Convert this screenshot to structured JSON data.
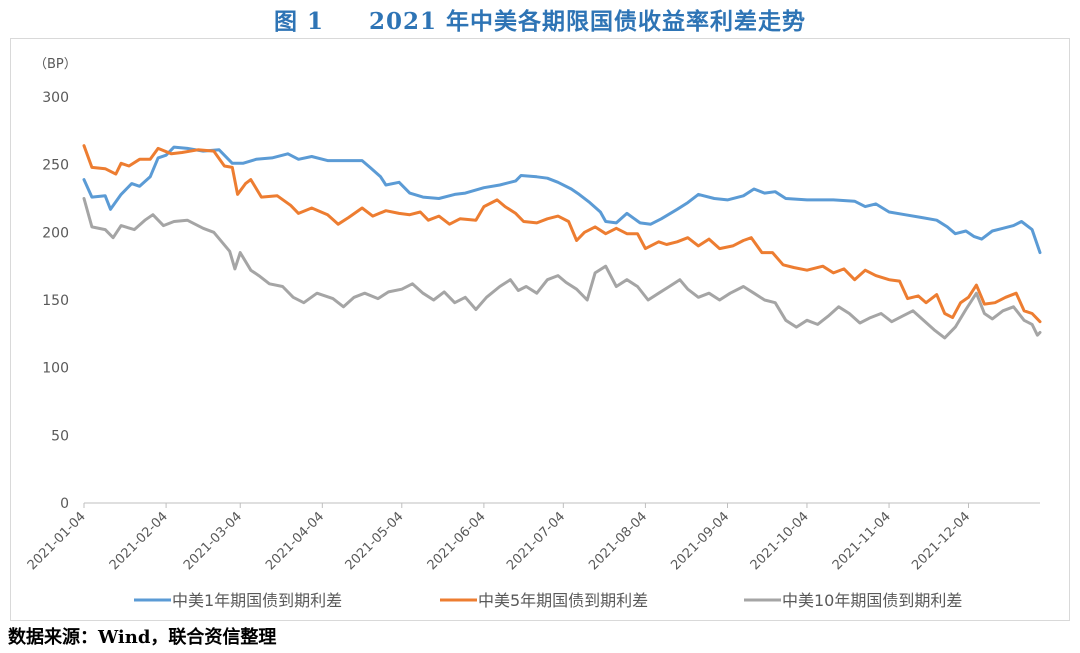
{
  "figure_title": "图 1     2021 年中美各期限国债收益率利差走势",
  "source_note": "数据来源：Wind，联合资信整理",
  "colors": {
    "series_1y": "#5B9BD5",
    "series_5y": "#ED7D31",
    "series_10y": "#A5A5A5",
    "axis": "#bfbfbf",
    "text": "#595959",
    "title": "#2E74B5"
  },
  "chart_data": {
    "type": "line",
    "title": "2021 年中美各期限国债收益率利差走势",
    "xlabel": "",
    "ylabel": "（BP）",
    "ylim": [
      0,
      300
    ],
    "y_ticks": [
      0,
      50,
      100,
      150,
      200,
      250,
      300
    ],
    "x_range": [
      "2021-01-04",
      "2021-12-31"
    ],
    "x_tick_labels": [
      "2021-01-04",
      "2021-02-04",
      "2021-03-04",
      "2021-04-04",
      "2021-05-04",
      "2021-06-04",
      "2021-07-04",
      "2021-08-04",
      "2021-09-04",
      "2021-10-04",
      "2021-11-04",
      "2021-12-04"
    ],
    "grid": false,
    "legend_position": "bottom",
    "series": [
      {
        "name": "中美1年期国债到期利差",
        "points": [
          [
            "2021-01-04",
            239
          ],
          [
            "2021-01-07",
            226
          ],
          [
            "2021-01-12",
            227
          ],
          [
            "2021-01-14",
            217
          ],
          [
            "2021-01-18",
            228
          ],
          [
            "2021-01-22",
            236
          ],
          [
            "2021-01-25",
            234
          ],
          [
            "2021-01-29",
            241
          ],
          [
            "2021-02-01",
            255
          ],
          [
            "2021-02-04",
            257
          ],
          [
            "2021-02-07",
            263
          ],
          [
            "2021-02-12",
            262
          ],
          [
            "2021-02-18",
            260
          ],
          [
            "2021-02-24",
            261
          ],
          [
            "2021-03-01",
            251
          ],
          [
            "2021-03-05",
            251
          ],
          [
            "2021-03-10",
            254
          ],
          [
            "2021-03-16",
            255
          ],
          [
            "2021-03-22",
            258
          ],
          [
            "2021-03-26",
            254
          ],
          [
            "2021-03-31",
            256
          ],
          [
            "2021-04-06",
            253
          ],
          [
            "2021-04-12",
            253
          ],
          [
            "2021-04-19",
            253
          ],
          [
            "2021-04-22",
            248
          ],
          [
            "2021-04-26",
            241
          ],
          [
            "2021-04-28",
            235
          ],
          [
            "2021-05-03",
            237
          ],
          [
            "2021-05-07",
            229
          ],
          [
            "2021-05-12",
            226
          ],
          [
            "2021-05-18",
            225
          ],
          [
            "2021-05-24",
            228
          ],
          [
            "2021-05-28",
            229
          ],
          [
            "2021-06-04",
            233
          ],
          [
            "2021-06-10",
            235
          ],
          [
            "2021-06-16",
            238
          ],
          [
            "2021-06-18",
            242
          ],
          [
            "2021-06-24",
            241
          ],
          [
            "2021-06-28",
            240
          ],
          [
            "2021-07-02",
            237
          ],
          [
            "2021-07-07",
            232
          ],
          [
            "2021-07-10",
            228
          ],
          [
            "2021-07-14",
            222
          ],
          [
            "2021-07-18",
            215
          ],
          [
            "2021-07-20",
            208
          ],
          [
            "2021-07-24",
            207
          ],
          [
            "2021-07-28",
            214
          ],
          [
            "2021-08-02",
            207
          ],
          [
            "2021-08-06",
            206
          ],
          [
            "2021-08-10",
            210
          ],
          [
            "2021-08-16",
            217
          ],
          [
            "2021-08-20",
            222
          ],
          [
            "2021-08-24",
            228
          ],
          [
            "2021-08-30",
            225
          ],
          [
            "2021-09-04",
            224
          ],
          [
            "2021-09-10",
            227
          ],
          [
            "2021-09-14",
            232
          ],
          [
            "2021-09-18",
            229
          ],
          [
            "2021-09-22",
            230
          ],
          [
            "2021-09-26",
            225
          ],
          [
            "2021-10-04",
            224
          ],
          [
            "2021-10-14",
            224
          ],
          [
            "2021-10-22",
            223
          ],
          [
            "2021-10-26",
            219
          ],
          [
            "2021-10-30",
            221
          ],
          [
            "2021-11-04",
            215
          ],
          [
            "2021-11-10",
            213
          ],
          [
            "2021-11-16",
            211
          ],
          [
            "2021-11-22",
            209
          ],
          [
            "2021-11-26",
            204
          ],
          [
            "2021-11-29",
            199
          ],
          [
            "2021-12-03",
            201
          ],
          [
            "2021-12-06",
            197
          ],
          [
            "2021-12-09",
            195
          ],
          [
            "2021-12-13",
            201
          ],
          [
            "2021-12-17",
            203
          ],
          [
            "2021-12-21",
            205
          ],
          [
            "2021-12-24",
            208
          ],
          [
            "2021-12-28",
            202
          ],
          [
            "2021-12-31",
            185
          ]
        ]
      },
      {
        "name": "中美5年期国债到期利差",
        "points": [
          [
            "2021-01-04",
            264
          ],
          [
            "2021-01-07",
            248
          ],
          [
            "2021-01-12",
            247
          ],
          [
            "2021-01-16",
            243
          ],
          [
            "2021-01-18",
            251
          ],
          [
            "2021-01-21",
            249
          ],
          [
            "2021-01-25",
            254
          ],
          [
            "2021-01-29",
            254
          ],
          [
            "2021-02-01",
            262
          ],
          [
            "2021-02-06",
            258
          ],
          [
            "2021-02-10",
            259
          ],
          [
            "2021-02-16",
            261
          ],
          [
            "2021-02-22",
            260
          ],
          [
            "2021-02-26",
            249
          ],
          [
            "2021-03-01",
            248
          ],
          [
            "2021-03-03",
            228
          ],
          [
            "2021-03-06",
            236
          ],
          [
            "2021-03-08",
            239
          ],
          [
            "2021-03-12",
            226
          ],
          [
            "2021-03-18",
            227
          ],
          [
            "2021-03-23",
            220
          ],
          [
            "2021-03-26",
            214
          ],
          [
            "2021-03-31",
            218
          ],
          [
            "2021-04-06",
            213
          ],
          [
            "2021-04-10",
            206
          ],
          [
            "2021-04-14",
            211
          ],
          [
            "2021-04-19",
            218
          ],
          [
            "2021-04-23",
            212
          ],
          [
            "2021-04-28",
            216
          ],
          [
            "2021-05-03",
            214
          ],
          [
            "2021-05-07",
            213
          ],
          [
            "2021-05-11",
            215
          ],
          [
            "2021-05-14",
            209
          ],
          [
            "2021-05-18",
            212
          ],
          [
            "2021-05-22",
            206
          ],
          [
            "2021-05-26",
            210
          ],
          [
            "2021-06-01",
            209
          ],
          [
            "2021-06-04",
            219
          ],
          [
            "2021-06-09",
            224
          ],
          [
            "2021-06-12",
            219
          ],
          [
            "2021-06-16",
            214
          ],
          [
            "2021-06-19",
            208
          ],
          [
            "2021-06-24",
            207
          ],
          [
            "2021-06-28",
            210
          ],
          [
            "2021-07-02",
            212
          ],
          [
            "2021-07-06",
            208
          ],
          [
            "2021-07-09",
            194
          ],
          [
            "2021-07-12",
            200
          ],
          [
            "2021-07-16",
            204
          ],
          [
            "2021-07-20",
            199
          ],
          [
            "2021-07-24",
            203
          ],
          [
            "2021-07-28",
            199
          ],
          [
            "2021-08-01",
            199
          ],
          [
            "2021-08-04",
            188
          ],
          [
            "2021-08-09",
            193
          ],
          [
            "2021-08-12",
            191
          ],
          [
            "2021-08-16",
            193
          ],
          [
            "2021-08-20",
            196
          ],
          [
            "2021-08-24",
            190
          ],
          [
            "2021-08-28",
            195
          ],
          [
            "2021-09-01",
            188
          ],
          [
            "2021-09-06",
            190
          ],
          [
            "2021-09-10",
            194
          ],
          [
            "2021-09-13",
            196
          ],
          [
            "2021-09-17",
            185
          ],
          [
            "2021-09-21",
            185
          ],
          [
            "2021-09-25",
            176
          ],
          [
            "2021-09-29",
            174
          ],
          [
            "2021-10-04",
            172
          ],
          [
            "2021-10-10",
            175
          ],
          [
            "2021-10-14",
            170
          ],
          [
            "2021-10-18",
            173
          ],
          [
            "2021-10-22",
            165
          ],
          [
            "2021-10-26",
            172
          ],
          [
            "2021-10-30",
            168
          ],
          [
            "2021-11-04",
            165
          ],
          [
            "2021-11-08",
            164
          ],
          [
            "2021-11-11",
            151
          ],
          [
            "2021-11-15",
            153
          ],
          [
            "2021-11-18",
            148
          ],
          [
            "2021-11-22",
            154
          ],
          [
            "2021-11-25",
            140
          ],
          [
            "2021-11-28",
            137
          ],
          [
            "2021-12-01",
            148
          ],
          [
            "2021-12-04",
            152
          ],
          [
            "2021-12-07",
            161
          ],
          [
            "2021-12-10",
            147
          ],
          [
            "2021-12-14",
            148
          ],
          [
            "2021-12-18",
            152
          ],
          [
            "2021-12-22",
            155
          ],
          [
            "2021-12-25",
            142
          ],
          [
            "2021-12-28",
            140
          ],
          [
            "2021-12-31",
            134
          ]
        ]
      },
      {
        "name": "中美10年期国债到期利差",
        "points": [
          [
            "2021-01-04",
            225
          ],
          [
            "2021-01-07",
            204
          ],
          [
            "2021-01-12",
            202
          ],
          [
            "2021-01-15",
            196
          ],
          [
            "2021-01-18",
            205
          ],
          [
            "2021-01-23",
            202
          ],
          [
            "2021-01-27",
            209
          ],
          [
            "2021-01-30",
            213
          ],
          [
            "2021-02-03",
            205
          ],
          [
            "2021-02-07",
            208
          ],
          [
            "2021-02-12",
            209
          ],
          [
            "2021-02-18",
            203
          ],
          [
            "2021-02-22",
            200
          ],
          [
            "2021-02-28",
            186
          ],
          [
            "2021-03-02",
            173
          ],
          [
            "2021-03-04",
            185
          ],
          [
            "2021-03-08",
            172
          ],
          [
            "2021-03-11",
            168
          ],
          [
            "2021-03-15",
            162
          ],
          [
            "2021-03-20",
            160
          ],
          [
            "2021-03-24",
            152
          ],
          [
            "2021-03-28",
            148
          ],
          [
            "2021-04-02",
            155
          ],
          [
            "2021-04-08",
            151
          ],
          [
            "2021-04-12",
            145
          ],
          [
            "2021-04-16",
            152
          ],
          [
            "2021-04-20",
            155
          ],
          [
            "2021-04-25",
            151
          ],
          [
            "2021-04-29",
            156
          ],
          [
            "2021-05-04",
            158
          ],
          [
            "2021-05-08",
            162
          ],
          [
            "2021-05-12",
            155
          ],
          [
            "2021-05-16",
            150
          ],
          [
            "2021-05-20",
            156
          ],
          [
            "2021-05-24",
            148
          ],
          [
            "2021-05-28",
            152
          ],
          [
            "2021-06-01",
            143
          ],
          [
            "2021-06-05",
            152
          ],
          [
            "2021-06-10",
            160
          ],
          [
            "2021-06-14",
            165
          ],
          [
            "2021-06-17",
            157
          ],
          [
            "2021-06-20",
            160
          ],
          [
            "2021-06-24",
            155
          ],
          [
            "2021-06-28",
            165
          ],
          [
            "2021-07-02",
            168
          ],
          [
            "2021-07-05",
            163
          ],
          [
            "2021-07-09",
            158
          ],
          [
            "2021-07-13",
            150
          ],
          [
            "2021-07-16",
            170
          ],
          [
            "2021-07-20",
            175
          ],
          [
            "2021-07-24",
            160
          ],
          [
            "2021-07-28",
            165
          ],
          [
            "2021-08-01",
            160
          ],
          [
            "2021-08-05",
            150
          ],
          [
            "2021-08-09",
            155
          ],
          [
            "2021-08-13",
            160
          ],
          [
            "2021-08-17",
            165
          ],
          [
            "2021-08-20",
            158
          ],
          [
            "2021-08-24",
            152
          ],
          [
            "2021-08-28",
            155
          ],
          [
            "2021-09-01",
            150
          ],
          [
            "2021-09-05",
            155
          ],
          [
            "2021-09-10",
            160
          ],
          [
            "2021-09-14",
            155
          ],
          [
            "2021-09-18",
            150
          ],
          [
            "2021-09-22",
            148
          ],
          [
            "2021-09-26",
            135
          ],
          [
            "2021-09-30",
            130
          ],
          [
            "2021-10-04",
            135
          ],
          [
            "2021-10-08",
            132
          ],
          [
            "2021-10-12",
            138
          ],
          [
            "2021-10-16",
            145
          ],
          [
            "2021-10-20",
            140
          ],
          [
            "2021-10-24",
            133
          ],
          [
            "2021-10-28",
            137
          ],
          [
            "2021-11-01",
            140
          ],
          [
            "2021-11-05",
            134
          ],
          [
            "2021-11-09",
            138
          ],
          [
            "2021-11-13",
            142
          ],
          [
            "2021-11-17",
            135
          ],
          [
            "2021-11-21",
            128
          ],
          [
            "2021-11-25",
            122
          ],
          [
            "2021-11-29",
            130
          ],
          [
            "2021-12-03",
            143
          ],
          [
            "2021-12-07",
            155
          ],
          [
            "2021-12-10",
            140
          ],
          [
            "2021-12-13",
            136
          ],
          [
            "2021-12-17",
            142
          ],
          [
            "2021-12-21",
            145
          ],
          [
            "2021-12-25",
            135
          ],
          [
            "2021-12-28",
            132
          ],
          [
            "2021-12-30",
            124
          ],
          [
            "2021-12-31",
            126
          ]
        ]
      }
    ]
  }
}
